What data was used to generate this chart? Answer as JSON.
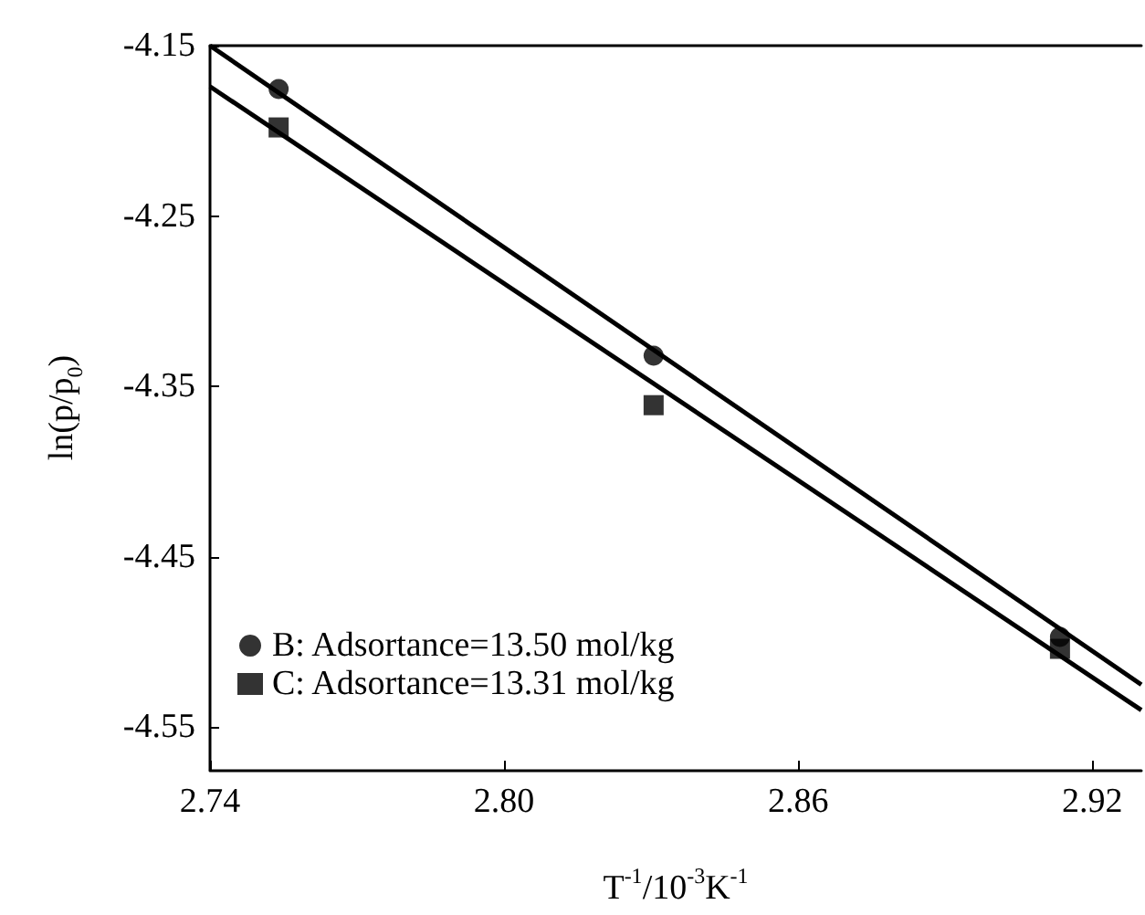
{
  "chart_data": {
    "type": "scatter",
    "xlabel": "T$^{-1}$/10$^{-3}$K$^{-1}$",
    "ylabel": "ln(p/p$_{0}$)",
    "xlim": [
      2.74,
      2.93
    ],
    "ylim": [
      -4.575,
      -4.15
    ],
    "xticks": [
      2.74,
      {
        "value": 2.8,
        "label": "2.80"
      },
      2.86,
      2.92
    ],
    "yticks": [
      -4.15,
      -4.25,
      -4.35,
      -4.45,
      -4.55
    ],
    "grid": false,
    "legend": "bottom left",
    "series": [
      {
        "name": "B: Adsortance=13.50 mol/kg",
        "color": "#000000",
        "marker": "circle",
        "x": [
          2.754,
          2.8305,
          2.9134
        ],
        "values": [
          -4.1755,
          -4.332,
          -4.497
        ]
      },
      {
        "name": "C: Adsortance=13.31 mol/kg",
        "color": "#000000",
        "marker": "square",
        "x": [
          2.754,
          2.8305,
          2.9134
        ],
        "values": [
          -4.198,
          -4.361,
          -4.504
        ]
      },
      {
        "type": "line",
        "color": "#000000",
        "marker": "none",
        "line_style": "solid",
        "x": [
          2.74,
          2.93
        ],
        "values": [
          -4.15,
          -4.525
        ]
      },
      {
        "type": "line",
        "color": "#000000",
        "marker": "none",
        "line_style": "solid",
        "x": [
          2.74,
          2.93
        ],
        "values": [
          -4.174,
          -4.54
        ]
      }
    ]
  }
}
